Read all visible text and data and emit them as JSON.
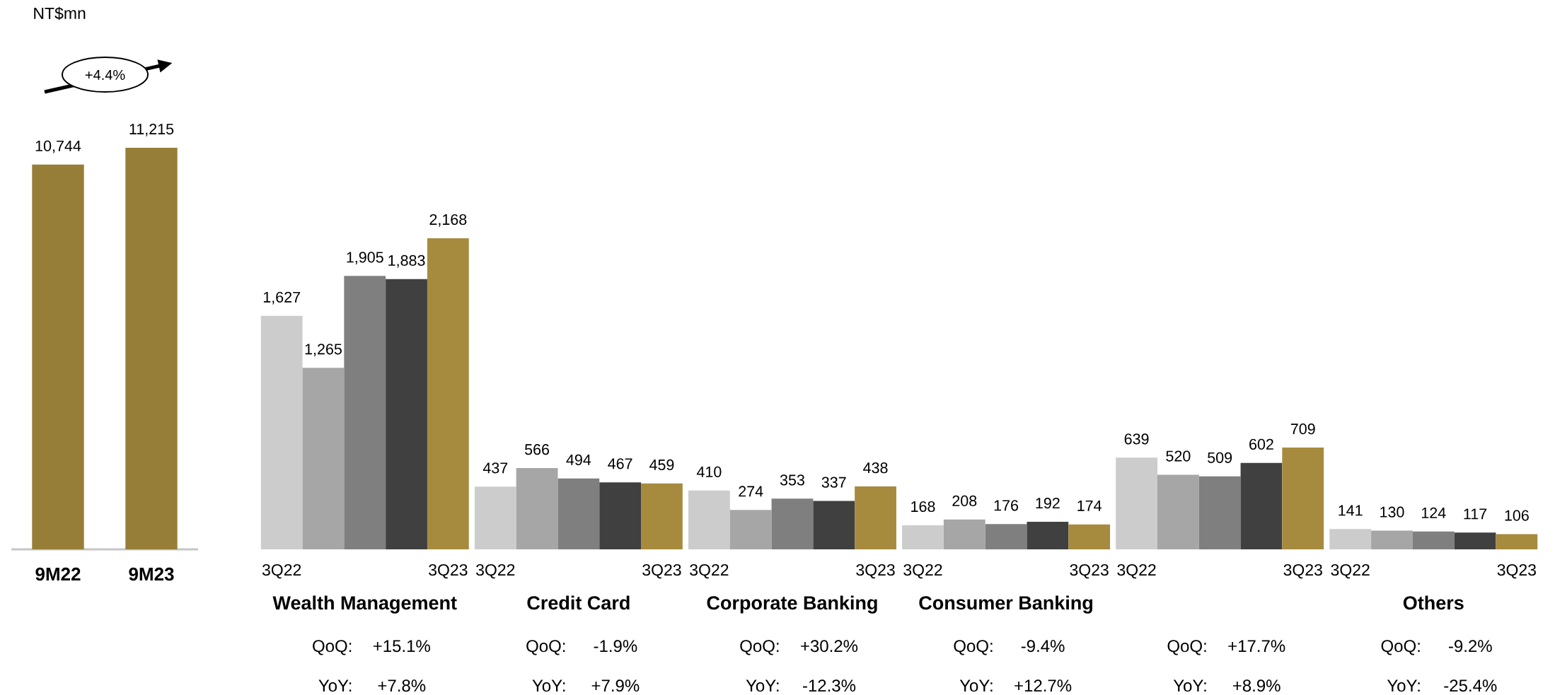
{
  "chart_data": [
    {
      "type": "bar",
      "ylabel": "NT$mn",
      "categories": [
        "9M22",
        "9M23"
      ],
      "values": [
        10744,
        11215
      ],
      "value_labels": [
        "10,744",
        "11,215"
      ],
      "color": "#977e38",
      "tick_labels": "x",
      "annotations": [
        "+4.4%"
      ]
    },
    {
      "type": "bar",
      "categories": [
        "Wealth Management",
        "Credit Card",
        "Corporate Banking",
        "Consumer Banking",
        null,
        "Others"
      ],
      "tick_labels": "x",
      "series": [
        {
          "name": "3Q22",
          "color": "#cccccc",
          "values": [
            1627,
            437,
            410,
            168,
            639,
            141
          ],
          "value_labels": [
            "1,627",
            "437",
            "410",
            "168",
            "639",
            "141"
          ]
        },
        {
          "color": "#a6a6a6",
          "values": [
            1265,
            566,
            274,
            208,
            520,
            130
          ],
          "value_labels": [
            "1,265",
            "566",
            "274",
            "208",
            "520",
            "130"
          ]
        },
        {
          "color": "#7f7f7f",
          "values": [
            1905,
            494,
            353,
            176,
            509,
            124
          ],
          "value_labels": [
            "1,905",
            "494",
            "353",
            "176",
            "509",
            "124"
          ]
        },
        {
          "color": "#404040",
          "values": [
            1883,
            467,
            337,
            192,
            602,
            117
          ],
          "value_labels": [
            "1,883",
            "467",
            "337",
            "192",
            "602",
            "117"
          ]
        },
        {
          "name": "3Q23",
          "color": "#a68a3e",
          "values": [
            2168,
            459,
            438,
            174,
            709,
            106
          ],
          "value_labels": [
            "2,168",
            "459",
            "438",
            "174",
            "709",
            "106"
          ]
        }
      ],
      "annotations": [
        "QoQ:",
        "+15.1%",
        "YoY:",
        "+7.8%",
        "QoQ:",
        "-1.9%",
        "YoY:",
        "+7.9%",
        "QoQ:",
        "+30.2%",
        "YoY:",
        "-12.3%",
        "QoQ:",
        "-9.4%",
        "YoY:",
        "+12.7%",
        "QoQ:",
        "+17.7%",
        "YoY:",
        "+8.9%",
        "QoQ:",
        "-9.2%",
        "YoY:",
        "-25.4%"
      ]
    }
  ]
}
